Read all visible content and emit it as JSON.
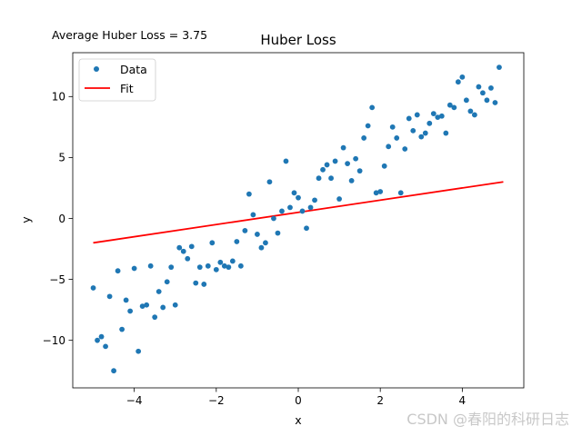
{
  "chart_data": {
    "type": "scatter",
    "title": "Huber Loss",
    "annotation": "Average Huber Loss = 3.75",
    "xlabel": "x",
    "ylabel": "y",
    "xlim": [
      -5.5,
      5.5
    ],
    "ylim": [
      -13.9,
      13.6
    ],
    "x_ticks": [
      -4,
      -2,
      0,
      2,
      4
    ],
    "y_ticks": [
      -10,
      -5,
      0,
      5,
      10
    ],
    "x_tick_labels": [
      "−4",
      "−2",
      "0",
      "2",
      "4"
    ],
    "y_tick_labels": [
      "−10",
      "−5",
      "0",
      "5",
      "10"
    ],
    "grid": false,
    "legend_position": "top-left",
    "series": [
      {
        "name": "Data",
        "kind": "scatter",
        "color": "#1f77b4",
        "points": [
          [
            -5.0,
            -5.7
          ],
          [
            -4.9,
            -10.0
          ],
          [
            -4.8,
            -9.7
          ],
          [
            -4.7,
            -10.5
          ],
          [
            -4.6,
            -6.4
          ],
          [
            -4.5,
            -12.5
          ],
          [
            -4.4,
            -4.3
          ],
          [
            -4.3,
            -9.1
          ],
          [
            -4.2,
            -6.7
          ],
          [
            -4.1,
            -7.6
          ],
          [
            -4.0,
            -4.1
          ],
          [
            -3.9,
            -10.9
          ],
          [
            -3.8,
            -7.2
          ],
          [
            -3.7,
            -7.1
          ],
          [
            -3.6,
            -3.9
          ],
          [
            -3.5,
            -8.1
          ],
          [
            -3.4,
            -6.0
          ],
          [
            -3.3,
            -7.3
          ],
          [
            -3.2,
            -5.2
          ],
          [
            -3.1,
            -4.0
          ],
          [
            -3.0,
            -7.1
          ],
          [
            -2.9,
            -2.4
          ],
          [
            -2.8,
            -2.7
          ],
          [
            -2.7,
            -3.3
          ],
          [
            -2.6,
            -2.3
          ],
          [
            -2.5,
            -5.3
          ],
          [
            -2.4,
            -4.0
          ],
          [
            -2.3,
            -5.4
          ],
          [
            -2.2,
            -3.9
          ],
          [
            -2.1,
            -2.0
          ],
          [
            -2.0,
            -4.2
          ],
          [
            -1.9,
            -3.6
          ],
          [
            -1.8,
            -3.9
          ],
          [
            -1.7,
            -4.0
          ],
          [
            -1.6,
            -3.5
          ],
          [
            -1.5,
            -1.9
          ],
          [
            -1.4,
            -3.9
          ],
          [
            -1.3,
            -1.0
          ],
          [
            -1.2,
            2.0
          ],
          [
            -1.1,
            0.3
          ],
          [
            -1.0,
            -1.3
          ],
          [
            -0.9,
            -2.4
          ],
          [
            -0.8,
            -2.0
          ],
          [
            -0.7,
            3.0
          ],
          [
            -0.6,
            0.0
          ],
          [
            -0.5,
            -1.2
          ],
          [
            -0.4,
            0.6
          ],
          [
            -0.3,
            4.7
          ],
          [
            -0.2,
            0.9
          ],
          [
            -0.1,
            2.1
          ],
          [
            0.0,
            1.7
          ],
          [
            0.1,
            0.6
          ],
          [
            0.2,
            -0.8
          ],
          [
            0.3,
            0.9
          ],
          [
            0.4,
            1.5
          ],
          [
            0.5,
            3.3
          ],
          [
            0.6,
            4.0
          ],
          [
            0.7,
            4.4
          ],
          [
            0.8,
            3.3
          ],
          [
            0.9,
            4.7
          ],
          [
            1.0,
            1.6
          ],
          [
            1.1,
            5.8
          ],
          [
            1.2,
            4.5
          ],
          [
            1.3,
            3.1
          ],
          [
            1.4,
            4.9
          ],
          [
            1.5,
            3.9
          ],
          [
            1.6,
            6.6
          ],
          [
            1.7,
            7.6
          ],
          [
            1.8,
            9.1
          ],
          [
            1.9,
            2.1
          ],
          [
            2.0,
            2.2
          ],
          [
            2.1,
            4.3
          ],
          [
            2.2,
            5.9
          ],
          [
            2.3,
            7.5
          ],
          [
            2.4,
            6.6
          ],
          [
            2.5,
            2.1
          ],
          [
            2.6,
            5.7
          ],
          [
            2.7,
            8.2
          ],
          [
            2.8,
            7.2
          ],
          [
            2.9,
            8.5
          ],
          [
            3.0,
            6.7
          ],
          [
            3.1,
            7.0
          ],
          [
            3.2,
            7.8
          ],
          [
            3.3,
            8.6
          ],
          [
            3.4,
            8.3
          ],
          [
            3.5,
            8.4
          ],
          [
            3.6,
            7.0
          ],
          [
            3.7,
            9.3
          ],
          [
            3.8,
            9.1
          ],
          [
            3.9,
            11.2
          ],
          [
            4.0,
            11.6
          ],
          [
            4.1,
            9.7
          ],
          [
            4.2,
            8.8
          ],
          [
            4.3,
            8.5
          ],
          [
            4.4,
            10.8
          ],
          [
            4.5,
            10.3
          ],
          [
            4.6,
            9.7
          ],
          [
            4.7,
            10.7
          ],
          [
            4.8,
            9.5
          ],
          [
            4.9,
            12.4
          ]
        ]
      },
      {
        "name": "Fit",
        "kind": "line",
        "color": "#ff0000",
        "points": [
          [
            -5.0,
            -2.0
          ],
          [
            5.0,
            3.0
          ]
        ]
      }
    ]
  },
  "watermark": "CSDN @春阳的科研日志"
}
